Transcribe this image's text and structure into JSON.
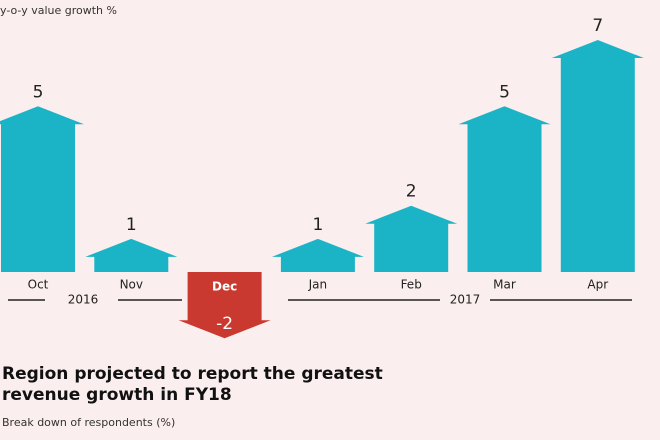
{
  "chart_data": {
    "type": "arrow-bar",
    "title": "y-o-y value growth %",
    "categories": [
      "Oct",
      "Nov",
      "Dec",
      "Jan",
      "Feb",
      "Mar",
      "Apr"
    ],
    "values": [
      5,
      1,
      -2,
      1,
      2,
      5,
      7
    ],
    "color": "#1bb4c6",
    "negative_color": "#c9392f",
    "annotations": [
      "2016",
      "2017"
    ]
  },
  "next_section": {
    "title": "Region projected to report the greatest revenue growth in FY18",
    "subtitle": "Break down of respondents (%)"
  }
}
